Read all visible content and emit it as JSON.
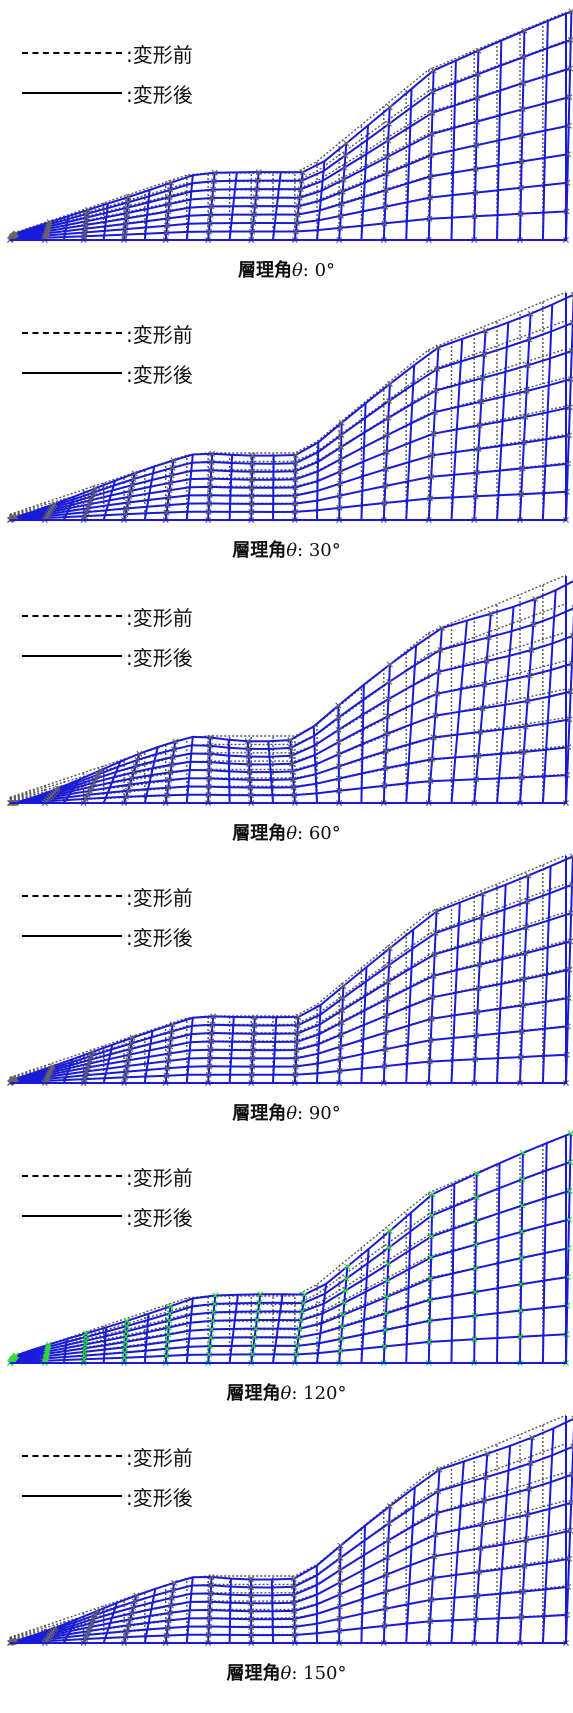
{
  "legend": {
    "before_label": ":変形前",
    "after_label": ":変形後"
  },
  "colors": {
    "deformed_mesh": "#1a1ad9",
    "original_mesh": "#555555",
    "node_marker_default": "#666666",
    "node_marker_highlight": "#33dd33"
  },
  "caption_prefix": "層理角",
  "caption_symbol": "θ",
  "caption_separator": ": ",
  "panels": [
    {
      "angle": "0°",
      "shift": -2,
      "highlight": false
    },
    {
      "angle": "30°",
      "shift": 6,
      "highlight": false
    },
    {
      "angle": "60°",
      "shift": 12,
      "highlight": false
    },
    {
      "angle": "90°",
      "shift": 3,
      "highlight": false
    },
    {
      "angle": "120°",
      "shift": -4,
      "highlight": true
    },
    {
      "angle": "150°",
      "shift": 8,
      "highlight": false
    }
  ]
}
